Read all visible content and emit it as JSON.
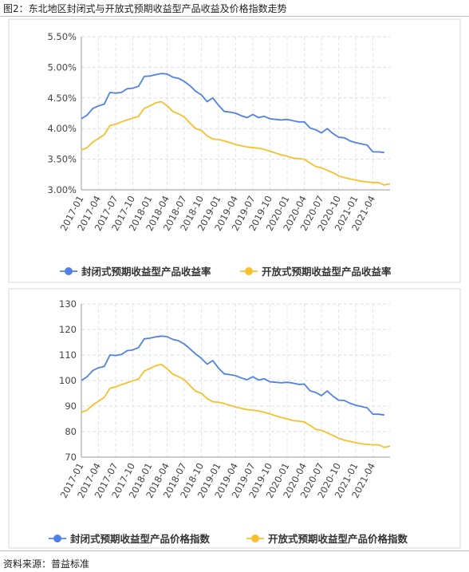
{
  "figure_title": "图2：东北地区封闭式与开放式预期收益型产品收益及价格指数走势",
  "source_text": "资料来源：普益标准",
  "chart_data": [
    {
      "type": "line",
      "title": "",
      "xlabel": "",
      "ylabel": "",
      "ylim": [
        3.0,
        5.5
      ],
      "yticks": [
        "3.00%",
        "3.50%",
        "4.00%",
        "4.50%",
        "5.00%",
        "5.50%"
      ],
      "ytick_values": [
        3.0,
        3.5,
        4.0,
        4.5,
        5.0,
        5.5
      ],
      "xticks": [
        "2017-01",
        "2017-04",
        "2017-07",
        "2017-10",
        "2018-01",
        "2018-04",
        "2018-07",
        "2018-10",
        "2019-01",
        "2019-04",
        "2019-07",
        "2019-10",
        "2020-01",
        "2020-04",
        "2020-07",
        "2020-10",
        "2021-01",
        "2021-04"
      ],
      "grid": true,
      "legend_position": "bottom",
      "series": [
        {
          "name": "封闭式预期收益型产品收益率",
          "color": "#4f81e8",
          "values": [
            4.16,
            4.22,
            4.33,
            4.37,
            4.4,
            4.59,
            4.58,
            4.59,
            4.65,
            4.66,
            4.69,
            4.85,
            4.86,
            4.88,
            4.9,
            4.89,
            4.84,
            4.82,
            4.77,
            4.7,
            4.61,
            4.55,
            4.44,
            4.5,
            4.38,
            4.28,
            4.27,
            4.25,
            4.21,
            4.18,
            4.23,
            4.18,
            4.2,
            4.16,
            4.15,
            4.14,
            4.15,
            4.13,
            4.11,
            4.11,
            4.01,
            3.98,
            3.93,
            4.0,
            3.92,
            3.86,
            3.85,
            3.8,
            3.77,
            3.75,
            3.73,
            3.62,
            3.62,
            3.61
          ]
        },
        {
          "name": "开放式预期收益型产品收益率",
          "color": "#f7c02c",
          "values": [
            3.65,
            3.69,
            3.78,
            3.84,
            3.9,
            4.05,
            4.07,
            4.11,
            4.14,
            4.17,
            4.2,
            4.33,
            4.37,
            4.42,
            4.44,
            4.37,
            4.28,
            4.24,
            4.19,
            4.09,
            4.0,
            3.97,
            3.88,
            3.83,
            3.82,
            3.8,
            3.77,
            3.74,
            3.72,
            3.7,
            3.69,
            3.68,
            3.66,
            3.63,
            3.6,
            3.57,
            3.55,
            3.52,
            3.51,
            3.5,
            3.44,
            3.38,
            3.36,
            3.32,
            3.28,
            3.23,
            3.2,
            3.18,
            3.16,
            3.14,
            3.13,
            3.12,
            3.12,
            3.08,
            3.1
          ]
        }
      ]
    },
    {
      "type": "line",
      "title": "",
      "xlabel": "",
      "ylabel": "",
      "ylim": [
        70,
        130
      ],
      "yticks": [
        "70",
        "80",
        "90",
        "100",
        "110",
        "120",
        "130"
      ],
      "ytick_values": [
        70,
        80,
        90,
        100,
        110,
        120,
        130
      ],
      "xticks": [
        "2017-01",
        "2017-04",
        "2017-07",
        "2017-10",
        "2018-01",
        "2018-04",
        "2018-07",
        "2018-10",
        "2019-01",
        "2019-04",
        "2019-07",
        "2019-10",
        "2020-01",
        "2020-04",
        "2020-07",
        "2020-10",
        "2021-01",
        "2021-04"
      ],
      "grid": true,
      "legend_position": "bottom",
      "series": [
        {
          "name": "封闭式预期收益型产品价格指数",
          "color": "#4f81e8",
          "values": [
            100.0,
            101.5,
            103.9,
            105.0,
            105.5,
            110.0,
            109.8,
            110.2,
            111.7,
            112.0,
            112.9,
            116.3,
            116.6,
            117.1,
            117.4,
            117.2,
            116.1,
            115.6,
            114.3,
            112.4,
            110.4,
            108.7,
            106.4,
            107.8,
            104.8,
            102.6,
            102.3,
            101.9,
            101.0,
            100.3,
            101.5,
            100.2,
            100.7,
            99.5,
            99.3,
            99.1,
            99.3,
            99.0,
            98.5,
            98.6,
            96.0,
            95.3,
            94.1,
            95.9,
            93.9,
            92.3,
            92.2,
            91.1,
            90.3,
            89.8,
            89.3,
            86.8,
            86.8,
            86.5
          ]
        },
        {
          "name": "开放式预期收益型产品价格指数",
          "color": "#f7c02c",
          "values": [
            87.5,
            88.4,
            90.4,
            91.9,
            93.4,
            97.0,
            97.5,
            98.4,
            99.1,
            99.9,
            100.6,
            103.7,
            104.7,
            105.8,
            106.3,
            104.6,
            102.5,
            101.5,
            100.3,
            98.0,
            95.8,
            95.0,
            92.9,
            91.7,
            91.5,
            91.0,
            90.3,
            89.6,
            89.1,
            88.6,
            88.4,
            88.1,
            87.6,
            86.9,
            86.2,
            85.5,
            85.0,
            84.3,
            84.1,
            83.8,
            82.4,
            80.9,
            80.5,
            79.5,
            78.5,
            77.4,
            76.6,
            76.2,
            75.7,
            75.2,
            75.0,
            74.8,
            74.8,
            73.8,
            74.3
          ]
        }
      ]
    }
  ]
}
